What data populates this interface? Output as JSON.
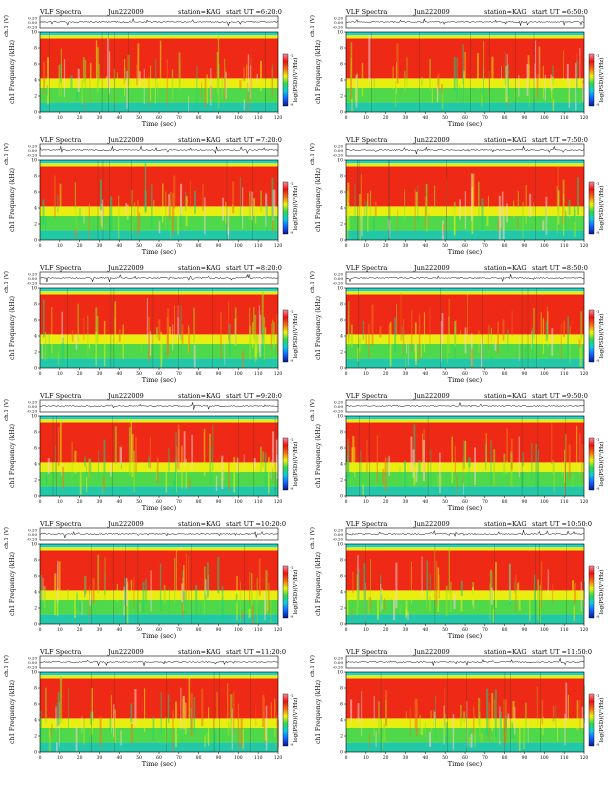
{
  "panels": [
    {
      "header": {
        "title": "VLF Spectra",
        "date": "Jun222009",
        "station": "station=KAG",
        "start": "start  UT =6:20:0"
      },
      "ch1_label": "ch.1 (V)",
      "ch1_ticks": [
        "0.20",
        "0.00",
        "-0.20"
      ],
      "freq_label": "ch1 Frequency (kHz)",
      "freq_ticks": [
        "0",
        "2",
        "4",
        "6",
        "8",
        "10"
      ],
      "cbar_label": "log(PSD)(V²/Hz)",
      "cbar_ticks": [
        "-1",
        "-9"
      ],
      "time_label": "Time (sec)",
      "time_ticks": [
        "0",
        "10",
        "20",
        "30",
        "40",
        "50",
        "60",
        "70",
        "80",
        "90",
        "100",
        "110",
        "120"
      ]
    },
    {
      "header": {
        "title": "VLF Spectra",
        "date": "Jun222009",
        "station": "station=KAG",
        "start": "start  UT =6:50:0"
      },
      "ch1_label": "ch.1 (V)",
      "ch1_ticks": [
        "0.20",
        "0.00",
        "-0.20"
      ],
      "freq_label": "ch1 Frequency (kHz)",
      "freq_ticks": [
        "0",
        "2",
        "4",
        "6",
        "8",
        "10"
      ],
      "cbar_label": "log(PSD)(V²/Hz)",
      "cbar_ticks": [
        "-1",
        "-9"
      ],
      "time_label": "Time (sec)",
      "time_ticks": [
        "0",
        "10",
        "20",
        "30",
        "40",
        "50",
        "60",
        "70",
        "80",
        "90",
        "100",
        "110",
        "120"
      ]
    },
    {
      "header": {
        "title": "VLF Spectra",
        "date": "Jun222009",
        "station": "station=KAG",
        "start": "start  UT =7:20:0"
      },
      "ch1_label": "ch.1 (V)",
      "ch1_ticks": [
        "0.20",
        "0.00",
        "-0.20"
      ],
      "freq_label": "ch1 Frequency (kHz)",
      "freq_ticks": [
        "0",
        "2",
        "4",
        "6",
        "8",
        "10"
      ],
      "cbar_label": "log(PSD)(V²/Hz)",
      "cbar_ticks": [
        "-1",
        "-9"
      ],
      "time_label": "Time (sec)",
      "time_ticks": [
        "0",
        "10",
        "20",
        "30",
        "40",
        "50",
        "60",
        "70",
        "80",
        "90",
        "100",
        "110",
        "120"
      ]
    },
    {
      "header": {
        "title": "VLF Spectra",
        "date": "Jun222009",
        "station": "station=KAG",
        "start": "start  UT =7:50:0"
      },
      "ch1_label": "ch.1 (V)",
      "ch1_ticks": [
        "0.20",
        "0.00",
        "-0.20"
      ],
      "freq_label": "ch1 Frequency (kHz)",
      "freq_ticks": [
        "0",
        "2",
        "4",
        "6",
        "8",
        "10"
      ],
      "cbar_label": "log(PSD)(V²/Hz)",
      "cbar_ticks": [
        "-1",
        "-9"
      ],
      "time_label": "Time (sec)",
      "time_ticks": [
        "0",
        "10",
        "20",
        "30",
        "40",
        "50",
        "60",
        "70",
        "80",
        "90",
        "100",
        "110",
        "120"
      ]
    },
    {
      "header": {
        "title": "VLF Spectra",
        "date": "Jun222009",
        "station": "station=KAG",
        "start": "start  UT =8:20:0"
      },
      "ch1_label": "ch.1 (V)",
      "ch1_ticks": [
        "0.20",
        "0.00",
        "-0.20"
      ],
      "freq_label": "ch1 Frequency (kHz)",
      "freq_ticks": [
        "0",
        "2",
        "4",
        "6",
        "8",
        "10"
      ],
      "cbar_label": "log(PSD)(V²/Hz)",
      "cbar_ticks": [
        "-1",
        "-9"
      ],
      "time_label": "Time (sec)",
      "time_ticks": [
        "0",
        "10",
        "20",
        "30",
        "40",
        "50",
        "60",
        "70",
        "80",
        "90",
        "100",
        "110",
        "120"
      ]
    },
    {
      "header": {
        "title": "VLF Spectra",
        "date": "Jun222009",
        "station": "station=KAG",
        "start": "start  UT =8:50:0"
      },
      "ch1_label": "ch.1 (V)",
      "ch1_ticks": [
        "0.20",
        "0.00",
        "-0.20"
      ],
      "freq_label": "ch1 Frequency (kHz)",
      "freq_ticks": [
        "0",
        "2",
        "4",
        "6",
        "8",
        "10"
      ],
      "cbar_label": "log(PSD)(V²/Hz)",
      "cbar_ticks": [
        "-1",
        "-9"
      ],
      "time_label": "Time (sec)",
      "time_ticks": [
        "0",
        "10",
        "20",
        "30",
        "40",
        "50",
        "60",
        "70",
        "80",
        "90",
        "100",
        "110",
        "120"
      ]
    },
    {
      "header": {
        "title": "VLF Spectra",
        "date": "Jun222009",
        "station": "station=KAG",
        "start": "start  UT =9:20:0"
      },
      "ch1_label": "ch.1 (V)",
      "ch1_ticks": [
        "0.20",
        "0.00",
        "-0.20"
      ],
      "freq_label": "ch1 Frequency (kHz)",
      "freq_ticks": [
        "0",
        "2",
        "4",
        "6",
        "8",
        "10"
      ],
      "cbar_label": "log(PSD)(V²/Hz)",
      "cbar_ticks": [
        "-1",
        "-9"
      ],
      "time_label": "Time (sec)",
      "time_ticks": [
        "0",
        "10",
        "20",
        "30",
        "40",
        "50",
        "60",
        "70",
        "80",
        "90",
        "100",
        "110",
        "120"
      ]
    },
    {
      "header": {
        "title": "VLF Spectra",
        "date": "Jun222009",
        "station": "station=KAG",
        "start": "start  UT =9:50:0"
      },
      "ch1_label": "ch.1 (V)",
      "ch1_ticks": [
        "0.20",
        "0.00",
        "-0.20"
      ],
      "freq_label": "ch1 Frequency (kHz)",
      "freq_ticks": [
        "0",
        "2",
        "4",
        "6",
        "8",
        "10"
      ],
      "cbar_label": "log(PSD)(V²/Hz)",
      "cbar_ticks": [
        "-1",
        "-9"
      ],
      "time_label": "Time (sec)",
      "time_ticks": [
        "0",
        "10",
        "20",
        "30",
        "40",
        "50",
        "60",
        "70",
        "80",
        "90",
        "100",
        "110",
        "120"
      ]
    },
    {
      "header": {
        "title": "VLF Spectra",
        "date": "Jun222009",
        "station": "station=KAG",
        "start": "start  UT =10:20:0"
      },
      "ch1_label": "ch.1 (V)",
      "ch1_ticks": [
        "0.20",
        "0.00",
        "-0.20"
      ],
      "freq_label": "ch1 Frequency (kHz)",
      "freq_ticks": [
        "0",
        "2",
        "4",
        "6",
        "8",
        "10"
      ],
      "cbar_label": "log(PSD)(V²/Hz)",
      "cbar_ticks": [
        "-1",
        "-9"
      ],
      "time_label": "Time (sec)",
      "time_ticks": [
        "0",
        "10",
        "20",
        "30",
        "40",
        "50",
        "60",
        "70",
        "80",
        "90",
        "100",
        "110",
        "120"
      ]
    },
    {
      "header": {
        "title": "VLF Spectra",
        "date": "Jun222009",
        "station": "station=KAG",
        "start": "start  UT =10:50:0"
      },
      "ch1_label": "ch.1 (V)",
      "ch1_ticks": [
        "0.20",
        "0.00",
        "-0.20"
      ],
      "freq_label": "ch1 Frequency (kHz)",
      "freq_ticks": [
        "0",
        "2",
        "4",
        "6",
        "8",
        "10"
      ],
      "cbar_label": "log(PSD)(V²/Hz)",
      "cbar_ticks": [
        "-1",
        "-9"
      ],
      "time_label": "Time (sec)",
      "time_ticks": [
        "0",
        "10",
        "20",
        "30",
        "40",
        "50",
        "60",
        "70",
        "80",
        "90",
        "100",
        "110",
        "120"
      ]
    },
    {
      "header": {
        "title": "VLF Spectra",
        "date": "Jun222009",
        "station": "station=KAG",
        "start": "start  UT =11:20:0"
      },
      "ch1_label": "ch.1 (V)",
      "ch1_ticks": [
        "0.20",
        "0.00",
        "-0.20"
      ],
      "freq_label": "ch1 Frequency (kHz)",
      "freq_ticks": [
        "0",
        "2",
        "4",
        "6",
        "8",
        "10"
      ],
      "cbar_label": "log(PSD)(V²/Hz)",
      "cbar_ticks": [
        "-1",
        "-9"
      ],
      "time_label": "Time (sec)",
      "time_ticks": [
        "0",
        "10",
        "20",
        "30",
        "40",
        "50",
        "60",
        "70",
        "80",
        "90",
        "100",
        "110",
        "120"
      ]
    },
    {
      "header": {
        "title": "VLF Spectra",
        "date": "Jun222009",
        "station": "station=KAG",
        "start": "start  UT =11:50:0"
      },
      "ch1_label": "ch.1 (V)",
      "ch1_ticks": [
        "0.20",
        "0.00",
        "-0.20"
      ],
      "freq_label": "ch1 Frequency (kHz)",
      "freq_ticks": [
        "0",
        "2",
        "4",
        "6",
        "8",
        "10"
      ],
      "cbar_label": "log(PSD)(V²/Hz)",
      "cbar_ticks": [
        "-1",
        "-9"
      ],
      "time_label": "Time (sec)",
      "time_ticks": [
        "0",
        "10",
        "20",
        "30",
        "40",
        "50",
        "60",
        "70",
        "80",
        "90",
        "100",
        "110",
        "120"
      ]
    }
  ],
  "colors": {
    "spectrogram_bands": [
      "#1fd07a",
      "#22c8a8",
      "#4fd84a",
      "#9be21e",
      "#e8ee10",
      "#f07a18",
      "#ee2a16"
    ],
    "top_strip": "#22d0c8",
    "colorbar": [
      "#0a1a8a",
      "#1060ff",
      "#10c8e0",
      "#30d850",
      "#f0f010",
      "#f07018",
      "#e81410",
      "#ff8aa0"
    ]
  },
  "chart_data": [
    {
      "type": "heatmap",
      "title": "VLF Spectra  Jun222009  station=KAG  start UT =6:20:0",
      "x_label": "Time (sec)",
      "y_label": "ch1 Frequency (kHz)",
      "xlim": [
        0,
        120
      ],
      "ylim": [
        0,
        10
      ],
      "cbar_label": "log(PSD)(V²/Hz)",
      "cbar_range": [
        -9,
        -1
      ],
      "dominant_band_kHz": [
        4,
        9.5
      ],
      "strong_low_band_kHz": [
        0,
        3.5
      ]
    },
    {
      "type": "heatmap",
      "title": "VLF Spectra  Jun222009  station=KAG  start UT =6:50:0",
      "x_label": "Time (sec)",
      "y_label": "ch1 Frequency (kHz)",
      "xlim": [
        0,
        120
      ],
      "ylim": [
        0,
        10
      ],
      "cbar_label": "log(PSD)(V²/Hz)",
      "cbar_range": [
        -9,
        -1
      ],
      "dominant_band_kHz": [
        4,
        9.5
      ],
      "strong_low_band_kHz": [
        0,
        3.5
      ]
    },
    {
      "type": "heatmap",
      "title": "VLF Spectra  Jun222009  station=KAG  start UT =7:20:0",
      "x_label": "Time (sec)",
      "y_label": "ch1 Frequency (kHz)",
      "xlim": [
        0,
        120
      ],
      "ylim": [
        0,
        10
      ],
      "cbar_label": "log(PSD)(V²/Hz)",
      "cbar_range": [
        -9,
        -1
      ],
      "dominant_band_kHz": [
        4,
        9.5
      ],
      "strong_low_band_kHz": [
        0,
        3.5
      ]
    },
    {
      "type": "heatmap",
      "title": "VLF Spectra  Jun222009  station=KAG  start UT =7:50:0",
      "x_label": "Time (sec)",
      "y_label": "ch1 Frequency (kHz)",
      "xlim": [
        0,
        120
      ],
      "ylim": [
        0,
        10
      ],
      "cbar_label": "log(PSD)(V²/Hz)",
      "cbar_range": [
        -9,
        -1
      ],
      "dominant_band_kHz": [
        4,
        9.5
      ],
      "strong_low_band_kHz": [
        0,
        3.5
      ]
    },
    {
      "type": "heatmap",
      "title": "VLF Spectra  Jun222009  station=KAG  start UT =8:20:0",
      "x_label": "Time (sec)",
      "y_label": "ch1 Frequency (kHz)",
      "xlim": [
        0,
        120
      ],
      "ylim": [
        0,
        10
      ],
      "cbar_label": "log(PSD)(V²/Hz)",
      "cbar_range": [
        -9,
        -1
      ],
      "dominant_band_kHz": [
        4,
        9.5
      ],
      "strong_low_band_kHz": [
        0,
        3.5
      ]
    },
    {
      "type": "heatmap",
      "title": "VLF Spectra  Jun222009  station=KAG  start UT =8:50:0",
      "x_label": "Time (sec)",
      "y_label": "ch1 Frequency (kHz)",
      "xlim": [
        0,
        120
      ],
      "ylim": [
        0,
        10
      ],
      "cbar_label": "log(PSD)(V²/Hz)",
      "cbar_range": [
        -9,
        -1
      ],
      "dominant_band_kHz": [
        4,
        9.5
      ],
      "strong_low_band_kHz": [
        0,
        3.5
      ]
    },
    {
      "type": "heatmap",
      "title": "VLF Spectra  Jun222009  station=KAG  start UT =9:20:0",
      "x_label": "Time (sec)",
      "y_label": "ch1 Frequency (kHz)",
      "xlim": [
        0,
        120
      ],
      "ylim": [
        0,
        10
      ],
      "cbar_label": "log(PSD)(V²/Hz)",
      "cbar_range": [
        -9,
        -1
      ],
      "dominant_band_kHz": [
        4,
        9.5
      ],
      "strong_low_band_kHz": [
        0,
        3.5
      ]
    },
    {
      "type": "heatmap",
      "title": "VLF Spectra  Jun222009  station=KAG  start UT =9:50:0",
      "x_label": "Time (sec)",
      "y_label": "ch1 Frequency (kHz)",
      "xlim": [
        0,
        120
      ],
      "ylim": [
        0,
        10
      ],
      "cbar_label": "log(PSD)(V²/Hz)",
      "cbar_range": [
        -9,
        -1
      ],
      "dominant_band_kHz": [
        4,
        9.5
      ],
      "strong_low_band_kHz": [
        0,
        3.5
      ]
    },
    {
      "type": "heatmap",
      "title": "VLF Spectra  Jun222009  station=KAG  start UT =10:20:0",
      "x_label": "Time (sec)",
      "y_label": "ch1 Frequency (kHz)",
      "xlim": [
        0,
        120
      ],
      "ylim": [
        0,
        10
      ],
      "cbar_label": "log(PSD)(V²/Hz)",
      "cbar_range": [
        -9,
        -1
      ],
      "dominant_band_kHz": [
        4,
        9.5
      ],
      "strong_low_band_kHz": [
        0,
        3.5
      ]
    },
    {
      "type": "heatmap",
      "title": "VLF Spectra  Jun222009  station=KAG  start UT =10:50:0",
      "x_label": "Time (sec)",
      "y_label": "ch1 Frequency (kHz)",
      "xlim": [
        0,
        120
      ],
      "ylim": [
        0,
        10
      ],
      "cbar_label": "log(PSD)(V²/Hz)",
      "cbar_range": [
        -9,
        -1
      ],
      "dominant_band_kHz": [
        4,
        9.5
      ],
      "strong_low_band_kHz": [
        0,
        3.5
      ]
    },
    {
      "type": "heatmap",
      "title": "VLF Spectra  Jun222009  station=KAG  start UT =11:20:0",
      "x_label": "Time (sec)",
      "y_label": "ch1 Frequency (kHz)",
      "xlim": [
        0,
        120
      ],
      "ylim": [
        0,
        10
      ],
      "cbar_label": "log(PSD)(V²/Hz)",
      "cbar_range": [
        -9,
        -1
      ],
      "dominant_band_kHz": [
        4,
        9.5
      ],
      "strong_low_band_kHz": [
        0,
        3.5
      ]
    },
    {
      "type": "heatmap",
      "title": "VLF Spectra  Jun222009  station=KAG  start UT =11:50:0",
      "x_label": "Time (sec)",
      "y_label": "ch1 Frequency (kHz)",
      "xlim": [
        0,
        120
      ],
      "ylim": [
        0,
        10
      ],
      "cbar_label": "log(PSD)(V²/Hz)",
      "cbar_range": [
        -9,
        -1
      ],
      "dominant_band_kHz": [
        4,
        9.5
      ],
      "strong_low_band_kHz": [
        0,
        3.5
      ]
    }
  ]
}
